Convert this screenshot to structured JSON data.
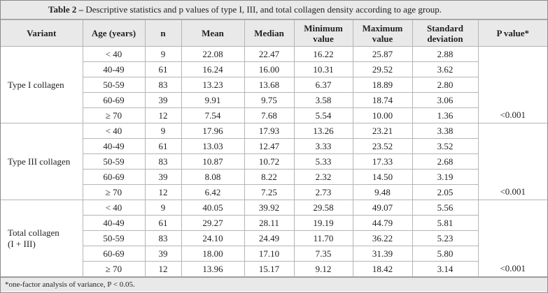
{
  "caption": {
    "label": "Table 2 –",
    "text": " Descriptive statistics and p values of type I, III, and total collagen density according to age group."
  },
  "headers": {
    "variant": "Variant",
    "age": "Age (years)",
    "n": "n",
    "mean": "Mean",
    "median": "Median",
    "min_line1": "Minimum",
    "min_line2": "value",
    "max_line1": "Maximum",
    "max_line2": "value",
    "sd_line1": "Standard",
    "sd_line2": "deviation",
    "pvalue": "P value*"
  },
  "groups": [
    {
      "variant_line1": "Type I collagen",
      "variant_line2": "",
      "p_value": "<0.001",
      "rows": [
        {
          "age": "< 40",
          "n": "9",
          "mean": "22.08",
          "median": "22.47",
          "min": "16.22",
          "max": "25.87",
          "sd": "2.88"
        },
        {
          "age": "40-49",
          "n": "61",
          "mean": "16.24",
          "median": "16.00",
          "min": "10.31",
          "max": "29.52",
          "sd": "3.62"
        },
        {
          "age": "50-59",
          "n": "83",
          "mean": "13.23",
          "median": "13.68",
          "min": "6.37",
          "max": "18.89",
          "sd": "2.80"
        },
        {
          "age": "60-69",
          "n": "39",
          "mean": "9.91",
          "median": "9.75",
          "min": "3.58",
          "max": "18.74",
          "sd": "3.06"
        },
        {
          "age": "≥ 70",
          "n": "12",
          "mean": "7.54",
          "median": "7.68",
          "min": "5.54",
          "max": "10.00",
          "sd": "1.36"
        }
      ]
    },
    {
      "variant_line1": "Type III collagen",
      "variant_line2": "",
      "p_value": "<0.001",
      "rows": [
        {
          "age": "< 40",
          "n": "9",
          "mean": "17.96",
          "median": "17.93",
          "min": "13.26",
          "max": "23.21",
          "sd": "3.38"
        },
        {
          "age": "40-49",
          "n": "61",
          "mean": "13.03",
          "median": "12.47",
          "min": "3.33",
          "max": "23.52",
          "sd": "3.52"
        },
        {
          "age": "50-59",
          "n": "83",
          "mean": "10.87",
          "median": "10.72",
          "min": "5.33",
          "max": "17.33",
          "sd": "2.68"
        },
        {
          "age": "60-69",
          "n": "39",
          "mean": "8.08",
          "median": "8.22",
          "min": "2.32",
          "max": "14.50",
          "sd": "3.19"
        },
        {
          "age": "≥ 70",
          "n": "12",
          "mean": "6.42",
          "median": "7.25",
          "min": "2.73",
          "max": "9.48",
          "sd": "2.05"
        }
      ]
    },
    {
      "variant_line1": "Total collagen",
      "variant_line2": "(I + III)",
      "p_value": "<0.001",
      "rows": [
        {
          "age": "< 40",
          "n": "9",
          "mean": "40.05",
          "median": "39.92",
          "min": "29.58",
          "max": "49.07",
          "sd": "5.56"
        },
        {
          "age": "40-49",
          "n": "61",
          "mean": "29.27",
          "median": "28.11",
          "min": "19.19",
          "max": "44.79",
          "sd": "5.81"
        },
        {
          "age": "50-59",
          "n": "83",
          "mean": "24.10",
          "median": "24.49",
          "min": "11.70",
          "max": "36.22",
          "sd": "5.23"
        },
        {
          "age": "60-69",
          "n": "39",
          "mean": "18.00",
          "median": "17.10",
          "min": "7.35",
          "max": "31.39",
          "sd": "5.80"
        },
        {
          "age": "≥ 70",
          "n": "12",
          "mean": "13.96",
          "median": "15.17",
          "min": "9.12",
          "max": "18.42",
          "sd": "3.14"
        }
      ]
    }
  ],
  "footnote": "*one-factor analysis of variance, P < 0.05."
}
